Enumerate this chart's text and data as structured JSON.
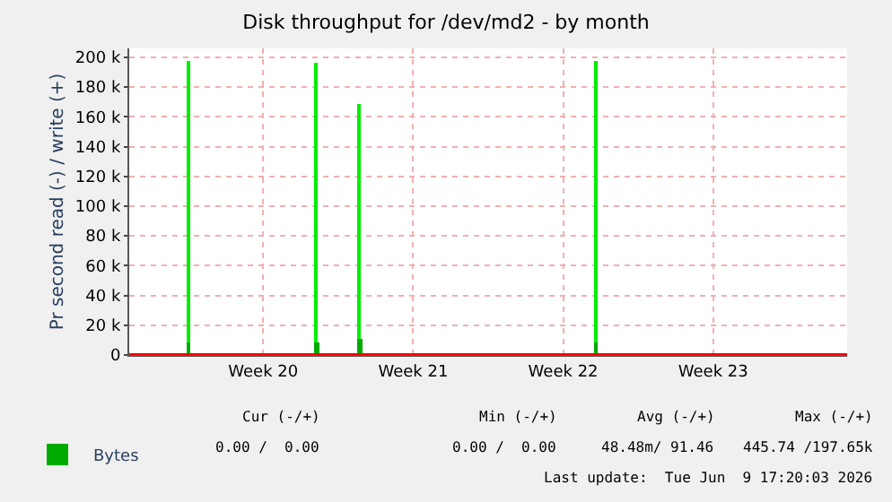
{
  "chart_data": {
    "type": "bar",
    "title": "Disk throughput for /dev/md2 - by month",
    "ylabel": "Pr second read (-) / write (+)",
    "categories": [
      null,
      null,
      null,
      null,
      null,
      null,
      null,
      null,
      null,
      null,
      null,
      null,
      "Week 20",
      null,
      null,
      null,
      null,
      null,
      null,
      null,
      null,
      null,
      null,
      null,
      null,
      null,
      "Week 21",
      null,
      null,
      null,
      null,
      null,
      null,
      null,
      null,
      null,
      null,
      null,
      null,
      null,
      "Week 22",
      null,
      null,
      null,
      null,
      null,
      null,
      null,
      null,
      null,
      null,
      null,
      null,
      null,
      "Week 23",
      null,
      null,
      null,
      null,
      null,
      null,
      null,
      null,
      null,
      null,
      null,
      null
    ],
    "series": [
      {
        "color": "#00ee00",
        "values": [
          null,
          null,
          null,
          null,
          null,
          197000,
          null,
          null,
          null,
          null,
          null,
          null,
          null,
          null,
          null,
          null,
          null,
          196000,
          null,
          null,
          null,
          169000,
          null,
          null,
          null,
          null,
          null,
          null,
          null,
          null,
          null,
          null,
          null,
          null,
          null,
          null,
          null,
          null,
          null,
          null,
          null,
          null,
          null,
          197000,
          null,
          null,
          null,
          null,
          null,
          null,
          null,
          null,
          null,
          null,
          null,
          null,
          null,
          null,
          null,
          null,
          null,
          null,
          null,
          null,
          null,
          null,
          null
        ]
      },
      {
        "name": "Bytes",
        "color": "#00aa00",
        "values": [
          null,
          null,
          null,
          null,
          null,
          9000,
          null,
          null,
          null,
          null,
          null,
          null,
          null,
          null,
          null,
          null,
          null,
          9000,
          null,
          null,
          null,
          11000,
          null,
          null,
          null,
          null,
          null,
          null,
          null,
          null,
          null,
          null,
          null,
          null,
          null,
          null,
          null,
          null,
          null,
          null,
          null,
          null,
          null,
          9000,
          null,
          null,
          null,
          null,
          null,
          null,
          null,
          null,
          null,
          null,
          null,
          null,
          null,
          null,
          null,
          null,
          null,
          null,
          null,
          null,
          null,
          null,
          null
        ]
      }
    ],
    "ylim": [
      0,
      206000
    ],
    "yticks": [
      {
        "value": 0,
        "label": "0"
      },
      {
        "value": 20000,
        "label": "20 k"
      },
      {
        "value": 40000,
        "label": "40 k"
      },
      {
        "value": 60000,
        "label": "60 k"
      },
      {
        "value": 80000,
        "label": "80 k"
      },
      {
        "value": 100000,
        "label": "100 k"
      },
      {
        "value": 120000,
        "label": "120 k"
      },
      {
        "value": 140000,
        "label": "140 k"
      },
      {
        "value": 160000,
        "label": "160 k"
      },
      {
        "value": 180000,
        "label": "180 k"
      },
      {
        "value": 200000,
        "label": "200 k"
      }
    ],
    "ref_lines": [
      {
        "axis": "y",
        "value": 0,
        "color": "#ff0000"
      }
    ],
    "grid": true,
    "legend": "bottom left",
    "annotations": [
      "Cur (-/+)",
      "Min (-/+)",
      "Avg (-/+)",
      "Max (-/+)",
      "0.00 /  0.00",
      "0.00 /  0.00",
      "48.48m/ 91.46",
      "445.74 /197.65k",
      "Last update:  Tue Jun  9 17:20:03 2026"
    ]
  }
}
